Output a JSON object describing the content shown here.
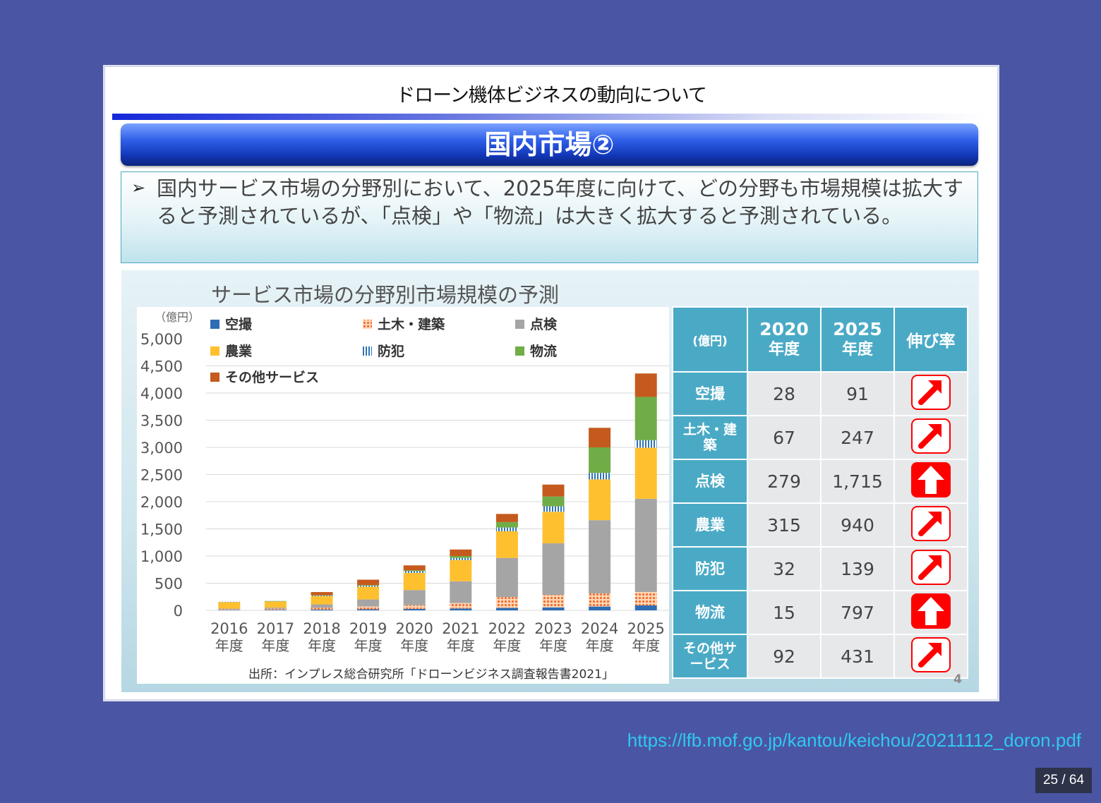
{
  "slide": {
    "title": "ドローン機体ビジネスの動向について",
    "banner": "国内市場②",
    "summary_bullet": "➢",
    "summary": "国内サービス市場の分野別において、2025年度に向けて、どの分野も市場規模は拡大すると予測されているが、「点検」や「物流」は大きく拡大すると予測されている。",
    "chart_title": "サービス市場の分野別市場規模の予測",
    "source": "出所：インプレス総合研究所「ドローンビジネス調査報告書2021」",
    "page_number": "4"
  },
  "chart_data": {
    "type": "bar",
    "stacked": true,
    "unit_label": "（億円）",
    "categories": [
      "2016年度",
      "2017年度",
      "2018年度",
      "2019年度",
      "2020年度",
      "2021年度",
      "2022年度",
      "2023年度",
      "2024年度",
      "2025年度"
    ],
    "category_years": [
      "2016",
      "2017",
      "2018",
      "2019",
      "2020",
      "2021",
      "2022",
      "2023",
      "2024",
      "2025"
    ],
    "category_suffix": "年度",
    "ylim": [
      0,
      5000
    ],
    "yticks": [
      "0",
      "500",
      "1,000",
      "1,500",
      "2,000",
      "2,500",
      "3,000",
      "3,500",
      "4,000",
      "4,500",
      "5,000"
    ],
    "grid": true,
    "legend_position": "top",
    "series": [
      {
        "name": "空撮",
        "color": "#2e6db4",
        "values": [
          8,
          10,
          15,
          20,
          28,
          35,
          45,
          55,
          70,
          91
        ]
      },
      {
        "name": "土木・建築",
        "color": "#f07030",
        "pattern": "dots",
        "values": [
          15,
          20,
          35,
          50,
          67,
          100,
          200,
          230,
          240,
          247
        ]
      },
      {
        "name": "点検",
        "color": "#a5a5a5",
        "values": [
          10,
          20,
          60,
          130,
          279,
          400,
          720,
          950,
          1350,
          1715
        ]
      },
      {
        "name": "農業",
        "color": "#ffc030",
        "values": [
          120,
          115,
          150,
          235,
          315,
          390,
          490,
          580,
          750,
          940
        ]
      },
      {
        "name": "防犯",
        "color": "#5b9bd5",
        "pattern": "stripes",
        "values": [
          5,
          5,
          12,
          20,
          32,
          40,
          70,
          100,
          120,
          139
        ]
      },
      {
        "name": "物流",
        "color": "#70ad47",
        "values": [
          0,
          2,
          5,
          10,
          15,
          35,
          100,
          180,
          470,
          797
        ]
      },
      {
        "name": "その他サービス",
        "color": "#c55a1e",
        "values": [
          0,
          0,
          60,
          100,
          92,
          120,
          150,
          220,
          360,
          431
        ]
      }
    ]
  },
  "table": {
    "header": {
      "unit": "(億円)",
      "col_2020_year": "2020",
      "col_2020_suffix": "年度",
      "col_2025_year": "2025",
      "col_2025_suffix": "年度",
      "growth": "伸び率"
    },
    "rows": [
      {
        "label": "空撮",
        "v2020": "28",
        "v2025": "91",
        "growth_icon": "diagonal-arrow"
      },
      {
        "label": "土木・建築",
        "v2020": "67",
        "v2025": "247",
        "growth_icon": "diagonal-arrow"
      },
      {
        "label": "点検",
        "v2020": "279",
        "v2025": "1,715",
        "growth_icon": "up-arrow"
      },
      {
        "label": "農業",
        "v2020": "315",
        "v2025": "940",
        "growth_icon": "diagonal-arrow"
      },
      {
        "label": "防犯",
        "v2020": "32",
        "v2025": "139",
        "growth_icon": "diagonal-arrow"
      },
      {
        "label": "物流",
        "v2020": "15",
        "v2025": "797",
        "growth_icon": "up-arrow"
      },
      {
        "label": "その他サービス",
        "v2020": "92",
        "v2025": "431",
        "growth_icon": "diagonal-arrow"
      }
    ],
    "arrow_color": "#ff0000"
  },
  "footer": {
    "link": "https://lfb.mof.go.jp/kantou/keichou/20211112_doron.pdf",
    "counter": "25 / 64"
  }
}
